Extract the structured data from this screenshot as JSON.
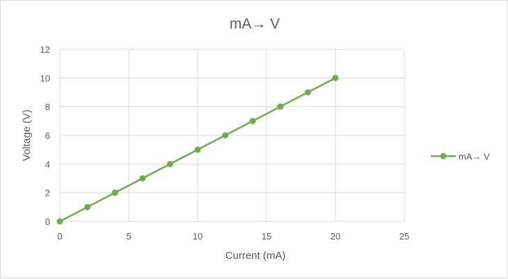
{
  "chart_data": {
    "type": "scatter",
    "title": "mA→ V",
    "xlabel": "Current (mA)",
    "ylabel": "Voltage (V)",
    "xlim": [
      0,
      25
    ],
    "ylim": [
      0,
      12
    ],
    "xticks": [
      0,
      5,
      10,
      15,
      20,
      25
    ],
    "yticks": [
      0,
      2,
      4,
      6,
      8,
      10,
      12
    ],
    "grid": true,
    "legend_position": "right",
    "series": [
      {
        "name": "mA→ V",
        "color": "#70ad47",
        "line": true,
        "marker": "circle",
        "x": [
          0,
          2,
          4,
          6,
          8,
          10,
          12,
          14,
          16,
          18,
          20
        ],
        "y": [
          0,
          1,
          2,
          3,
          4,
          5,
          6,
          7,
          8,
          9,
          10
        ]
      }
    ]
  }
}
